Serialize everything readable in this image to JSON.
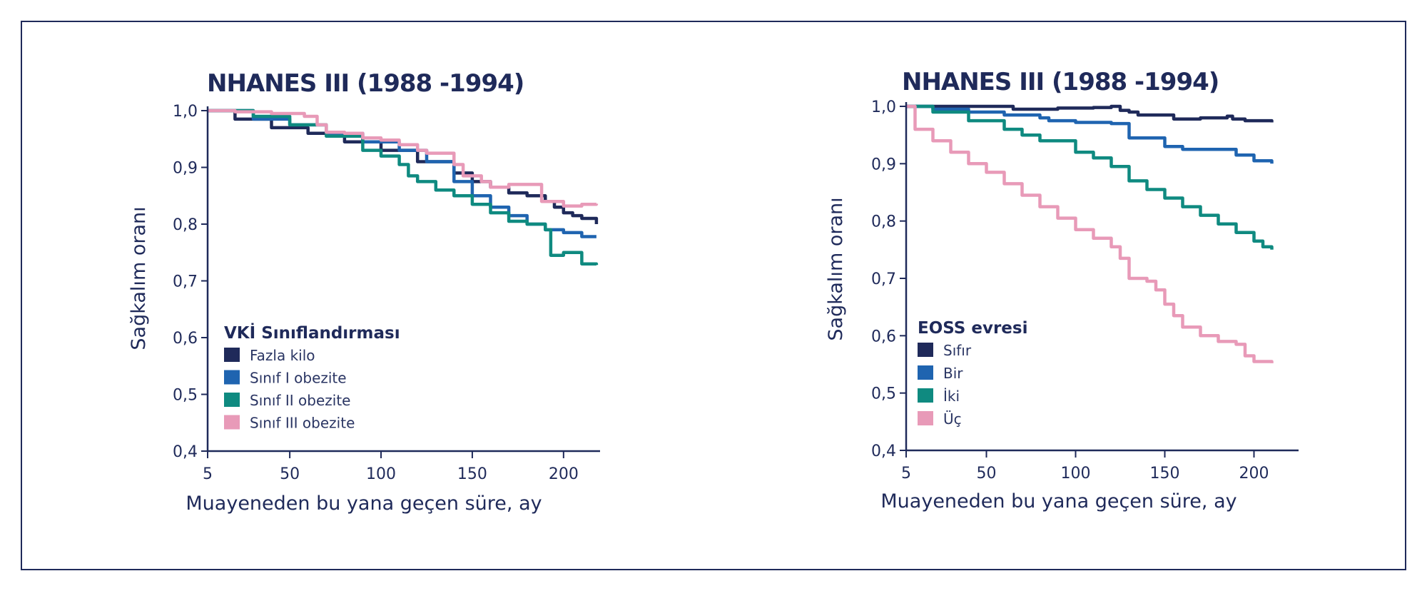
{
  "chart_data": [
    {
      "type": "line",
      "title": "NHANES III (1988 -1994)",
      "xlabel": "Muayeneden bu yana geçen süre, ay",
      "ylabel": "Sağkalım oranı",
      "xlim": [
        5,
        220
      ],
      "ylim": [
        0.4,
        1.0
      ],
      "xticks": [
        5,
        50,
        100,
        150,
        200
      ],
      "xtick_labels": [
        "5",
        "50",
        "100",
        "150",
        "200"
      ],
      "yticks": [
        1.0,
        0.9,
        0.8,
        0.7,
        0.6,
        0.5,
        0.4
      ],
      "ytick_labels": [
        "1,0",
        "0,9",
        "0,8",
        "0,7",
        "0,6",
        "0,5",
        "0,4"
      ],
      "legend": {
        "title": "VKİ Sınıflandırması",
        "position": "lower-left"
      },
      "series": [
        {
          "name": "Fazla kilo",
          "color": "#1f2a5a",
          "x": [
            5,
            20,
            40,
            60,
            80,
            100,
            120,
            140,
            150,
            160,
            170,
            180,
            190,
            195,
            200,
            205,
            210,
            215,
            218
          ],
          "y": [
            1.0,
            0.985,
            0.97,
            0.96,
            0.945,
            0.93,
            0.91,
            0.89,
            0.875,
            0.865,
            0.855,
            0.85,
            0.84,
            0.83,
            0.82,
            0.815,
            0.81,
            0.81,
            0.8
          ]
        },
        {
          "name": "Sınıf I obezite",
          "color": "#1f64b0",
          "x": [
            5,
            30,
            50,
            70,
            90,
            110,
            125,
            140,
            150,
            160,
            170,
            180,
            190,
            200,
            210,
            218
          ],
          "y": [
            1.0,
            0.985,
            0.975,
            0.96,
            0.945,
            0.93,
            0.91,
            0.875,
            0.85,
            0.83,
            0.815,
            0.8,
            0.79,
            0.785,
            0.778,
            0.778
          ]
        },
        {
          "name": "Sınıf II obezite",
          "color": "#0f8a80",
          "x": [
            5,
            30,
            50,
            70,
            90,
            100,
            110,
            115,
            120,
            130,
            140,
            150,
            160,
            170,
            180,
            190,
            193,
            200,
            205,
            210,
            218
          ],
          "y": [
            1.0,
            0.99,
            0.975,
            0.955,
            0.93,
            0.92,
            0.905,
            0.885,
            0.875,
            0.86,
            0.85,
            0.835,
            0.82,
            0.805,
            0.8,
            0.79,
            0.745,
            0.75,
            0.75,
            0.73,
            0.728
          ]
        },
        {
          "name": "Sınıf III obezite",
          "color": "#e89ab8",
          "x": [
            5,
            20,
            40,
            58,
            65,
            70,
            80,
            90,
            100,
            110,
            120,
            125,
            140,
            145,
            155,
            160,
            170,
            180,
            186,
            188,
            200,
            210,
            218
          ],
          "y": [
            1.0,
            0.998,
            0.995,
            0.99,
            0.975,
            0.962,
            0.96,
            0.952,
            0.948,
            0.94,
            0.93,
            0.925,
            0.905,
            0.885,
            0.875,
            0.865,
            0.87,
            0.87,
            0.87,
            0.84,
            0.832,
            0.835,
            0.836
          ]
        }
      ]
    },
    {
      "type": "line",
      "title": "NHANES III (1988 -1994)",
      "xlabel": "Muayeneden bu yana geçen süre, ay",
      "ylabel": "Sağkalım oranı",
      "xlim": [
        5,
        225
      ],
      "ylim": [
        0.4,
        1.0
      ],
      "xticks": [
        5,
        50,
        100,
        150,
        200
      ],
      "xtick_labels": [
        "5",
        "50",
        "100",
        "150",
        "200"
      ],
      "yticks": [
        1.0,
        0.9,
        0.8,
        0.7,
        0.6,
        0.5,
        0.4
      ],
      "ytick_labels": [
        "1,0",
        "0,9",
        "0,8",
        "0,7",
        "0,6",
        "0,5",
        "0,4"
      ],
      "legend": {
        "title": "EOSS evresi",
        "position": "lower-left"
      },
      "series": [
        {
          "name": "Sıfır",
          "color": "#1f2a5a",
          "x": [
            5,
            30,
            60,
            65,
            90,
            110,
            120,
            125,
            130,
            135,
            150,
            155,
            170,
            185,
            188,
            195,
            200,
            210
          ],
          "y": [
            1.0,
            1.0,
            1.0,
            0.995,
            0.997,
            0.998,
            1.0,
            0.993,
            0.99,
            0.985,
            0.985,
            0.978,
            0.98,
            0.983,
            0.978,
            0.975,
            0.975,
            0.972
          ]
        },
        {
          "name": "Bir",
          "color": "#1f64b0",
          "x": [
            5,
            20,
            40,
            60,
            80,
            85,
            90,
            100,
            120,
            130,
            140,
            150,
            160,
            175,
            190,
            200,
            210
          ],
          "y": [
            1.0,
            0.995,
            0.99,
            0.985,
            0.98,
            0.975,
            0.975,
            0.972,
            0.97,
            0.945,
            0.945,
            0.93,
            0.925,
            0.925,
            0.915,
            0.905,
            0.9
          ]
        },
        {
          "name": "İki",
          "color": "#0f8a80",
          "x": [
            5,
            20,
            40,
            60,
            70,
            80,
            100,
            110,
            120,
            130,
            140,
            150,
            160,
            170,
            180,
            190,
            200,
            205,
            210
          ],
          "y": [
            1.0,
            0.99,
            0.975,
            0.96,
            0.95,
            0.94,
            0.92,
            0.91,
            0.895,
            0.87,
            0.855,
            0.84,
            0.825,
            0.81,
            0.795,
            0.78,
            0.765,
            0.755,
            0.75
          ]
        },
        {
          "name": "Üç",
          "color": "#e89ab8",
          "x": [
            5,
            10,
            20,
            30,
            40,
            50,
            60,
            70,
            80,
            90,
            100,
            110,
            120,
            125,
            130,
            140,
            145,
            150,
            155,
            160,
            170,
            180,
            190,
            195,
            200,
            210
          ],
          "y": [
            1.0,
            0.96,
            0.94,
            0.92,
            0.9,
            0.885,
            0.865,
            0.845,
            0.825,
            0.805,
            0.785,
            0.77,
            0.755,
            0.735,
            0.7,
            0.695,
            0.68,
            0.655,
            0.635,
            0.615,
            0.6,
            0.59,
            0.585,
            0.565,
            0.555,
            0.552
          ]
        }
      ]
    }
  ]
}
